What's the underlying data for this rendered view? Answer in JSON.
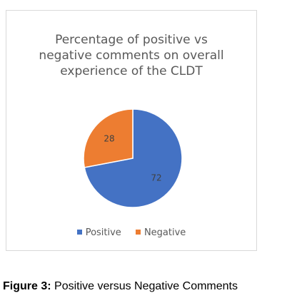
{
  "chart_data": {
    "type": "pie",
    "title_lines": [
      "Percentage of positive vs",
      "negative comments on overall",
      "experience of the CLDT"
    ],
    "categories": [
      "Positive",
      "Negative"
    ],
    "values": [
      72,
      28
    ],
    "data_labels": [
      "72",
      "28"
    ],
    "colors": [
      "#4472c4",
      "#ed7d31"
    ],
    "legend_position": "bottom"
  },
  "caption": {
    "label": "Figure 3:",
    "text": "Positive versus Negative Comments"
  }
}
